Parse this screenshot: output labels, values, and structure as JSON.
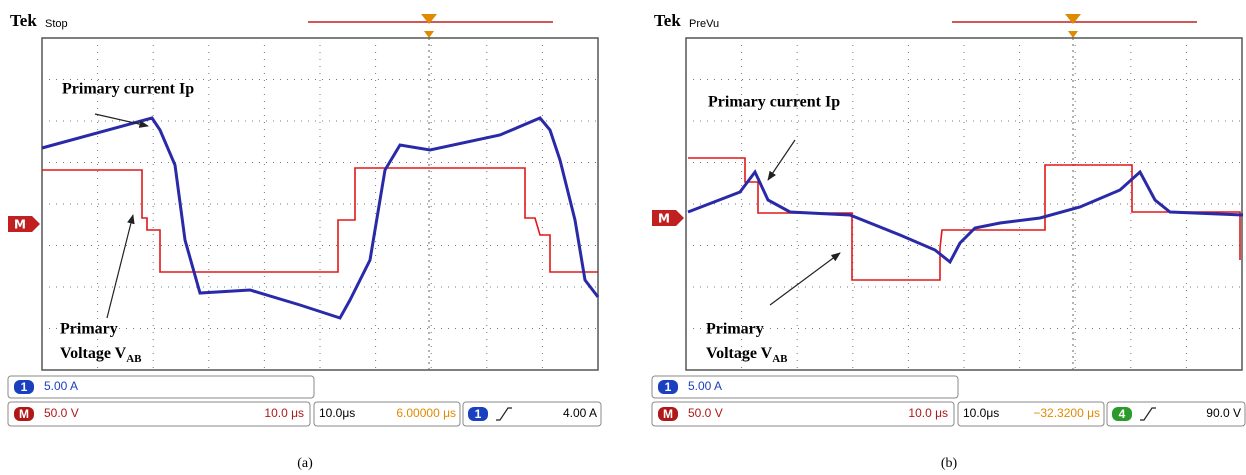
{
  "panels": [
    {
      "brand": "Tek",
      "status": "Stop",
      "marker": "M",
      "current_label": "Primary current Ip",
      "voltage_label": {
        "line1": "Primary",
        "line2": "Voltage V",
        "subscript": "AB"
      },
      "readouts": {
        "ch1_badge": "1",
        "ch1_scale": "5.00 A",
        "math_badge": "M",
        "math_scale": "50.0 V",
        "math_time": "10.0 μs",
        "timebase": "10.0μs",
        "position": "6.00000 μs",
        "trigger_badge": "1",
        "trigger_level": "4.00 A"
      },
      "caption": "(a)"
    },
    {
      "brand": "Tek",
      "status": "PreVu",
      "marker": "M",
      "current_label": "Primary current Ip",
      "voltage_label": {
        "line1": "Primary",
        "line2": "Voltage V",
        "subscript": "AB"
      },
      "readouts": {
        "ch1_badge": "1",
        "ch1_scale": "5.00 A",
        "math_badge": "M",
        "math_scale": "50.0 V",
        "math_time": "10.0 μs",
        "timebase": "10.0μs",
        "position": "−32.3200 μs",
        "trigger_badge": "4",
        "trigger_level": "90.0 V"
      },
      "caption": "(b)"
    }
  ]
}
